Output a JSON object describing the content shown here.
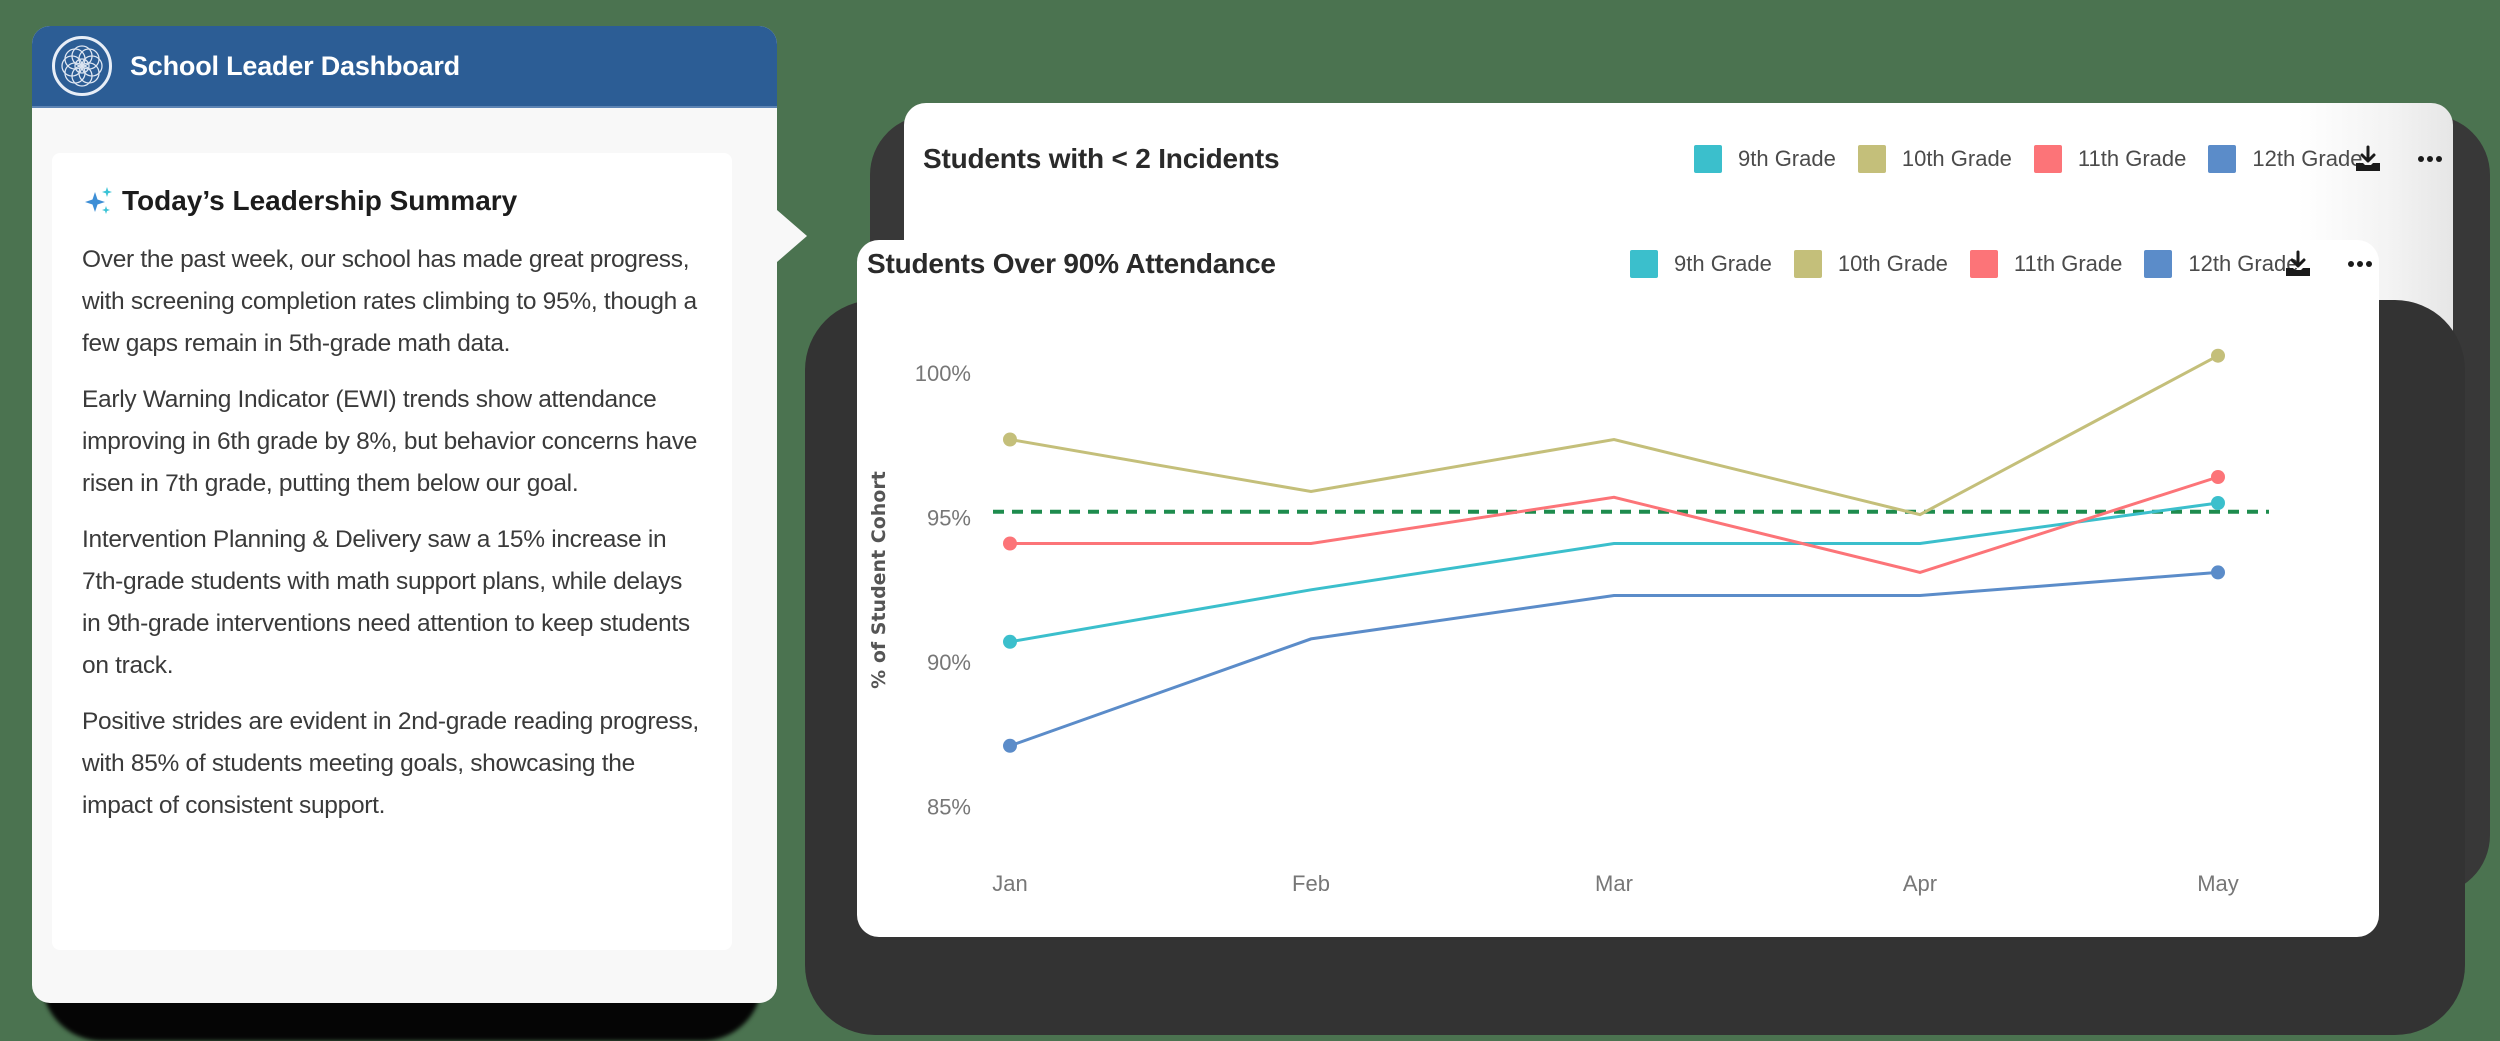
{
  "panel": {
    "title": "School Leader Dashboard",
    "logo_icon": "mandala-logo-icon",
    "summary": {
      "heading": "Today’s Leadership Summary",
      "heading_icon": "sparkle-icon",
      "paragraphs": [
        "Over the past week, our school has made great progress, with screening completion rates climbing to 95%, though a few gaps remain in 5th-grade math data.",
        "Early Warning Indicator (EWI) trends show attendance improving in 6th grade by 8%, but behavior concerns have risen in 7th grade, putting them below our goal.",
        "Intervention Planning & Delivery saw a 15% increase in 7th-grade students with math support plans, while delays in 9th-grade interventions need attention to keep students on track.",
        "Positive strides are evident in 2nd-grade reading progress, with 85% of students meeting goals, showcasing the impact of consistent support."
      ]
    }
  },
  "legend": [
    {
      "label": "9th Grade",
      "color": "#3bbfcc"
    },
    {
      "label": "10th Grade",
      "color": "#c4bf7a"
    },
    {
      "label": "11th Grade",
      "color": "#fc7478"
    },
    {
      "label": "12th Grade",
      "color": "#5b8cc9"
    }
  ],
  "back_card": {
    "title": "Students with < 2 Incidents",
    "download_icon": "download-icon",
    "more_icon": "more-horizontal-icon"
  },
  "front_card": {
    "title": "Students Over 90% Attendance",
    "download_icon": "download-icon",
    "more_icon": "more-horizontal-icon"
  },
  "colors": {
    "header_blue": "#2c5d95",
    "goal_line": "#1e8c4e",
    "background": "#4b7350"
  },
  "chart_data": {
    "type": "line",
    "title": "Students Over 90% Attendance",
    "xlabel": "",
    "ylabel": "% of Student Cohort",
    "categories": [
      "Jan",
      "Feb",
      "Mar",
      "Apr",
      "May"
    ],
    "y_ticks": [
      "100%",
      "95%",
      "90%",
      "85%"
    ],
    "ylim": [
      85,
      100
    ],
    "grid": false,
    "legend_position": "top-right",
    "series": [
      {
        "name": "9th Grade",
        "color": "#3bbfcc",
        "values": [
          90.7,
          92.5,
          94.1,
          94.1,
          95.5
        ]
      },
      {
        "name": "10th Grade",
        "color": "#c4bf7a",
        "values": [
          97.7,
          95.9,
          97.7,
          95.1,
          100.6
        ]
      },
      {
        "name": "11th Grade",
        "color": "#fc7478",
        "values": [
          94.1,
          94.1,
          95.7,
          93.1,
          96.4
        ]
      },
      {
        "name": "12th Grade",
        "color": "#5b8cc9",
        "values": [
          87.1,
          90.8,
          92.3,
          92.3,
          93.1
        ]
      }
    ],
    "annotations": [
      {
        "type": "goal-line",
        "value": 95.2,
        "style": "dashed",
        "color": "#1e8c4e"
      }
    ]
  }
}
